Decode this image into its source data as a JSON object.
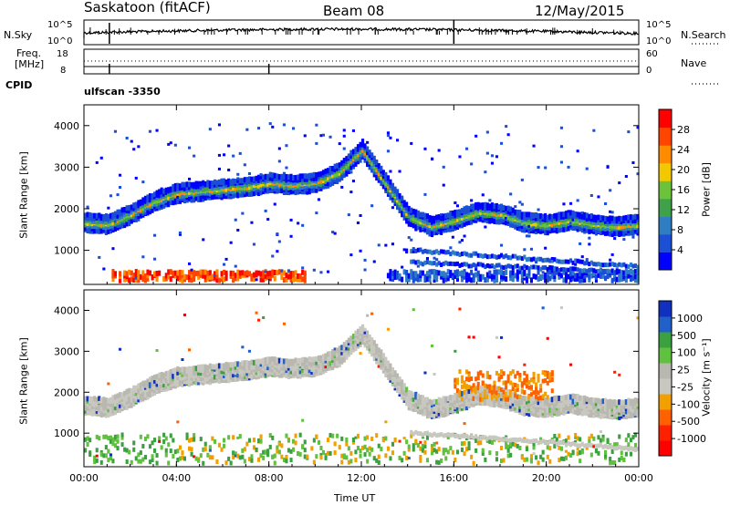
{
  "header": {
    "station": "Saskatoon (fitACF)",
    "beam": "Beam 08",
    "date": "12/May/2015"
  },
  "sky_panel": {
    "left_label": "N.Sky",
    "right_label": "N.Search",
    "tick_top_left": "10^5",
    "tick_bottom_left": "10^0",
    "tick_top_right": "10^5",
    "tick_bottom_right": "10^0"
  },
  "freq_panel": {
    "left_label_line1": "Freq.",
    "left_label_line2": "[MHz]",
    "tick_top_left": "18",
    "tick_bottom_left": "8",
    "tick_top_right": "60",
    "tick_bottom_right": "0",
    "right_label": "Nave"
  },
  "cpid": {
    "label": "CPID",
    "value": "ulfscan -3350"
  },
  "colors": {
    "power": [
      "#0000ff",
      "#1a4fd6",
      "#2f7ec4",
      "#3fa24a",
      "#6cc33a",
      "#f2c800",
      "#ff8c00",
      "#ff4500",
      "#ff0000"
    ],
    "velocity": [
      "#1030c0",
      "#2060c8",
      "#3aa040",
      "#60c040",
      "#b8b8b0",
      "#c8c8c0",
      "#f2a000",
      "#ff6000",
      "#ff2000",
      "#ff0000"
    ]
  },
  "chart_data": [
    {
      "type": "heatmap",
      "name": "power",
      "ylabel": "Slant Range [km]",
      "ylim": [
        180,
        4500
      ],
      "yticks": [
        "1000",
        "2000",
        "3000",
        "4000"
      ],
      "colorbar_label": "Power [dB]",
      "colorbar_ticks": [
        "28",
        "24",
        "20",
        "16",
        "12",
        "8",
        "4"
      ],
      "xlim": [
        "00:00",
        "24:00"
      ],
      "main_band": [
        [
          0,
          1650
        ],
        [
          1,
          1600
        ],
        [
          2,
          1850
        ],
        [
          3,
          2150
        ],
        [
          4,
          2350
        ],
        [
          5,
          2400
        ],
        [
          6,
          2450
        ],
        [
          7,
          2500
        ],
        [
          8,
          2600
        ],
        [
          9,
          2550
        ],
        [
          10,
          2600
        ],
        [
          11,
          2850
        ],
        [
          12,
          3400
        ],
        [
          13,
          2600
        ],
        [
          14,
          1800
        ],
        [
          15,
          1550
        ],
        [
          16,
          1700
        ],
        [
          17,
          1900
        ],
        [
          18,
          1850
        ],
        [
          19,
          1650
        ],
        [
          20,
          1600
        ],
        [
          21,
          1700
        ],
        [
          22,
          1600
        ],
        [
          23,
          1550
        ],
        [
          24,
          1600
        ]
      ],
      "strong_echo": {
        "start_hour": 1.2,
        "end_hour": 9.5,
        "range_km": 300
      }
    },
    {
      "type": "heatmap",
      "name": "velocity",
      "ylabel": "Slant Range [km]",
      "ylim": [
        180,
        4500
      ],
      "yticks": [
        "1000",
        "2000",
        "3000",
        "4000"
      ],
      "colorbar_label": "Velocity [m s⁻¹]",
      "colorbar_ticks": [
        "1000",
        "500",
        "100",
        "25",
        "-25",
        "-100",
        "-500",
        "-1000"
      ],
      "xlabel": "Time UT",
      "xticks": [
        "00:00",
        "04:00",
        "08:00",
        "12:00",
        "16:00",
        "20:00",
        "00:00"
      ],
      "main_band": [
        [
          0,
          1650
        ],
        [
          1,
          1600
        ],
        [
          2,
          1850
        ],
        [
          3,
          2150
        ],
        [
          4,
          2350
        ],
        [
          5,
          2400
        ],
        [
          6,
          2450
        ],
        [
          7,
          2500
        ],
        [
          8,
          2600
        ],
        [
          9,
          2550
        ],
        [
          10,
          2600
        ],
        [
          11,
          2850
        ],
        [
          12,
          3400
        ],
        [
          13,
          2600
        ],
        [
          14,
          1800
        ],
        [
          15,
          1550
        ],
        [
          16,
          1700
        ],
        [
          17,
          1900
        ],
        [
          18,
          1850
        ],
        [
          19,
          1650
        ],
        [
          20,
          1600
        ],
        [
          21,
          1700
        ],
        [
          22,
          1600
        ],
        [
          23,
          1550
        ],
        [
          24,
          1600
        ]
      ],
      "receding_patch": {
        "start_hour": 16,
        "end_hour": 20.2,
        "range_km": [
          1800,
          2500
        ]
      }
    }
  ]
}
